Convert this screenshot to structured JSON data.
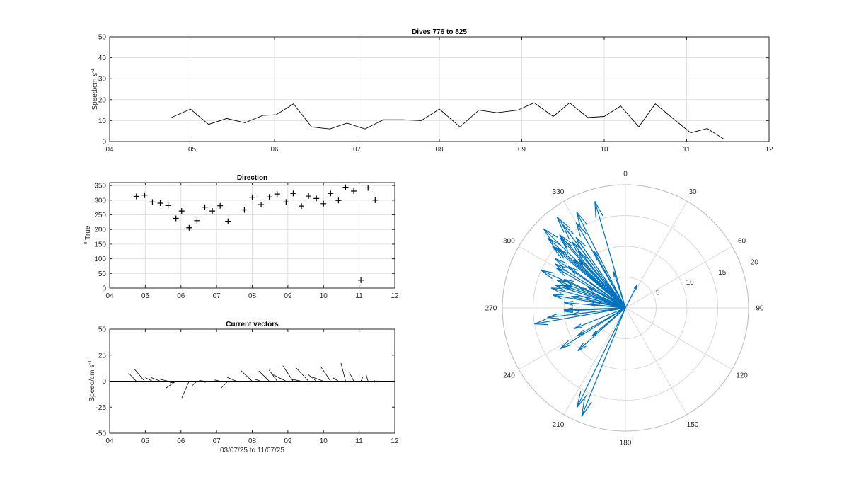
{
  "chart_data": [
    {
      "id": "speed",
      "type": "line",
      "title": "Dives 776 to 825",
      "xlabel": "",
      "ylabel": "Speed/cm s",
      "ylabel_sup": "-1",
      "xlim": [
        4,
        12
      ],
      "ylim": [
        0,
        50
      ],
      "xticks": [
        4,
        5,
        6,
        7,
        8,
        9,
        10,
        11,
        12
      ],
      "xtick_labels": [
        "04",
        "05",
        "06",
        "07",
        "08",
        "09",
        "10",
        "11",
        "12"
      ],
      "yticks": [
        0,
        10,
        20,
        30,
        40,
        50
      ],
      "grid": true,
      "color": "#000000",
      "x": [
        4.75,
        4.98,
        5.2,
        5.42,
        5.64,
        5.86,
        6.02,
        6.23,
        6.45,
        6.67,
        6.88,
        7.1,
        7.32,
        7.56,
        7.78,
        8.0,
        8.25,
        8.48,
        8.7,
        8.95,
        9.15,
        9.38,
        9.58,
        9.8,
        10.0,
        10.2,
        10.42,
        10.62,
        10.85,
        11.05,
        11.25,
        11.45
      ],
      "y": [
        11.5,
        15.5,
        8.2,
        11,
        9,
        12.5,
        12.8,
        18,
        7,
        6,
        8.8,
        6,
        10.4,
        10.4,
        10,
        15.5,
        7,
        15,
        13.8,
        15,
        18.5,
        12,
        18.5,
        11.5,
        12,
        17,
        7,
        18,
        10.5,
        4.2,
        6.2,
        1.2
      ]
    },
    {
      "id": "direction",
      "type": "scatter",
      "title": "Direction",
      "ylabel": "o True",
      "ylabel_prefix": "o",
      "ylabel_text": "True",
      "xlim": [
        4,
        12
      ],
      "ylim": [
        0,
        360
      ],
      "xticks": [
        4,
        5,
        6,
        7,
        8,
        9,
        10,
        11,
        12
      ],
      "xtick_labels": [
        "04",
        "05",
        "06",
        "07",
        "08",
        "09",
        "10",
        "11",
        "12"
      ],
      "yticks": [
        0,
        50,
        100,
        150,
        200,
        250,
        300,
        350
      ],
      "grid": true,
      "marker": "+",
      "x": [
        4.75,
        4.98,
        5.2,
        5.42,
        5.64,
        5.86,
        6.02,
        6.23,
        6.45,
        6.67,
        6.88,
        7.1,
        7.32,
        7.78,
        8.0,
        8.25,
        8.48,
        8.7,
        8.95,
        9.15,
        9.38,
        9.58,
        9.8,
        10.0,
        10.2,
        10.42,
        10.62,
        10.85,
        11.05,
        11.25,
        11.45
      ],
      "y": [
        313,
        317,
        294,
        290,
        282,
        238,
        263,
        206,
        230,
        276,
        263,
        281,
        228,
        267,
        310,
        285,
        311,
        321,
        294,
        323,
        280,
        314,
        306,
        288,
        323,
        299,
        344,
        331,
        27,
        342,
        300
      ]
    },
    {
      "id": "vectors",
      "type": "vector",
      "title": "Current vectors",
      "xlabel": "03/07/25 to 11/07/25",
      "ylabel": "Speed/cm s",
      "ylabel_sup": "-1",
      "xlim": [
        4,
        12
      ],
      "ylim": [
        -50,
        50
      ],
      "xticks": [
        4,
        5,
        6,
        7,
        8,
        9,
        10,
        11,
        12
      ],
      "xtick_labels": [
        "04",
        "05",
        "06",
        "07",
        "08",
        "09",
        "10",
        "11",
        "12"
      ],
      "yticks": [
        -50,
        -25,
        0,
        25,
        50
      ],
      "grid": false,
      "color": "#000000",
      "x": [
        4.75,
        4.98,
        5.2,
        5.42,
        5.64,
        5.86,
        6.02,
        6.23,
        6.45,
        6.67,
        6.88,
        7.1,
        7.32,
        7.56,
        7.78,
        8.0,
        8.25,
        8.48,
        8.7,
        8.95,
        9.15,
        9.38,
        9.58,
        9.8,
        10.0,
        10.2,
        10.42,
        10.62,
        10.85,
        11.05,
        11.25,
        11.45
      ],
      "speed": [
        11.5,
        15.5,
        8.2,
        11,
        9,
        12.5,
        12.8,
        18,
        7,
        6,
        8.8,
        6,
        10.4,
        10.4,
        10,
        15.5,
        7,
        15,
        13.8,
        15,
        18.5,
        12,
        18.5,
        11.5,
        12,
        17,
        7,
        18,
        10.5,
        4.2,
        6.2,
        1.2
      ],
      "direction": [
        313,
        317,
        294,
        290,
        282,
        238,
        263,
        206,
        230,
        276,
        263,
        281,
        228,
        290,
        267,
        310,
        285,
        311,
        321,
        294,
        323,
        280,
        314,
        306,
        288,
        323,
        299,
        344,
        331,
        27,
        342,
        300
      ]
    },
    {
      "id": "compass",
      "type": "compass",
      "theta_labels": [
        "0",
        "30",
        "60",
        "90",
        "120",
        "150",
        "180",
        "210",
        "240",
        "270",
        "300",
        "330"
      ],
      "r_ticks": [
        5,
        10,
        15,
        20
      ],
      "r_tick_labels": [
        "5",
        "10",
        "15",
        "20"
      ],
      "rmax": 20,
      "color": "#0072BD",
      "speed": [
        11.5,
        15.5,
        8.2,
        11,
        9,
        12.5,
        12.8,
        18,
        7,
        6,
        8.8,
        6,
        10.4,
        10.4,
        10,
        15.5,
        7,
        15,
        13.8,
        15,
        18.5,
        12,
        18.5,
        11.5,
        12,
        17,
        7,
        18,
        10.5,
        4.2,
        6.2,
        19,
        16,
        14,
        13,
        11,
        17,
        12,
        9,
        15,
        12.5,
        13.5,
        10,
        16,
        12,
        9,
        14,
        11,
        17.5,
        10
      ],
      "direction": [
        313,
        317,
        294,
        290,
        282,
        238,
        263,
        206,
        230,
        276,
        263,
        281,
        228,
        290,
        267,
        310,
        285,
        311,
        321,
        294,
        323,
        280,
        314,
        306,
        288,
        323,
        299,
        344,
        331,
        27,
        342,
        202,
        330,
        325,
        300,
        295,
        312,
        320,
        240,
        260,
        285,
        302,
        275,
        318,
        292,
        248,
        305,
        316,
        333,
        268
      ]
    }
  ]
}
